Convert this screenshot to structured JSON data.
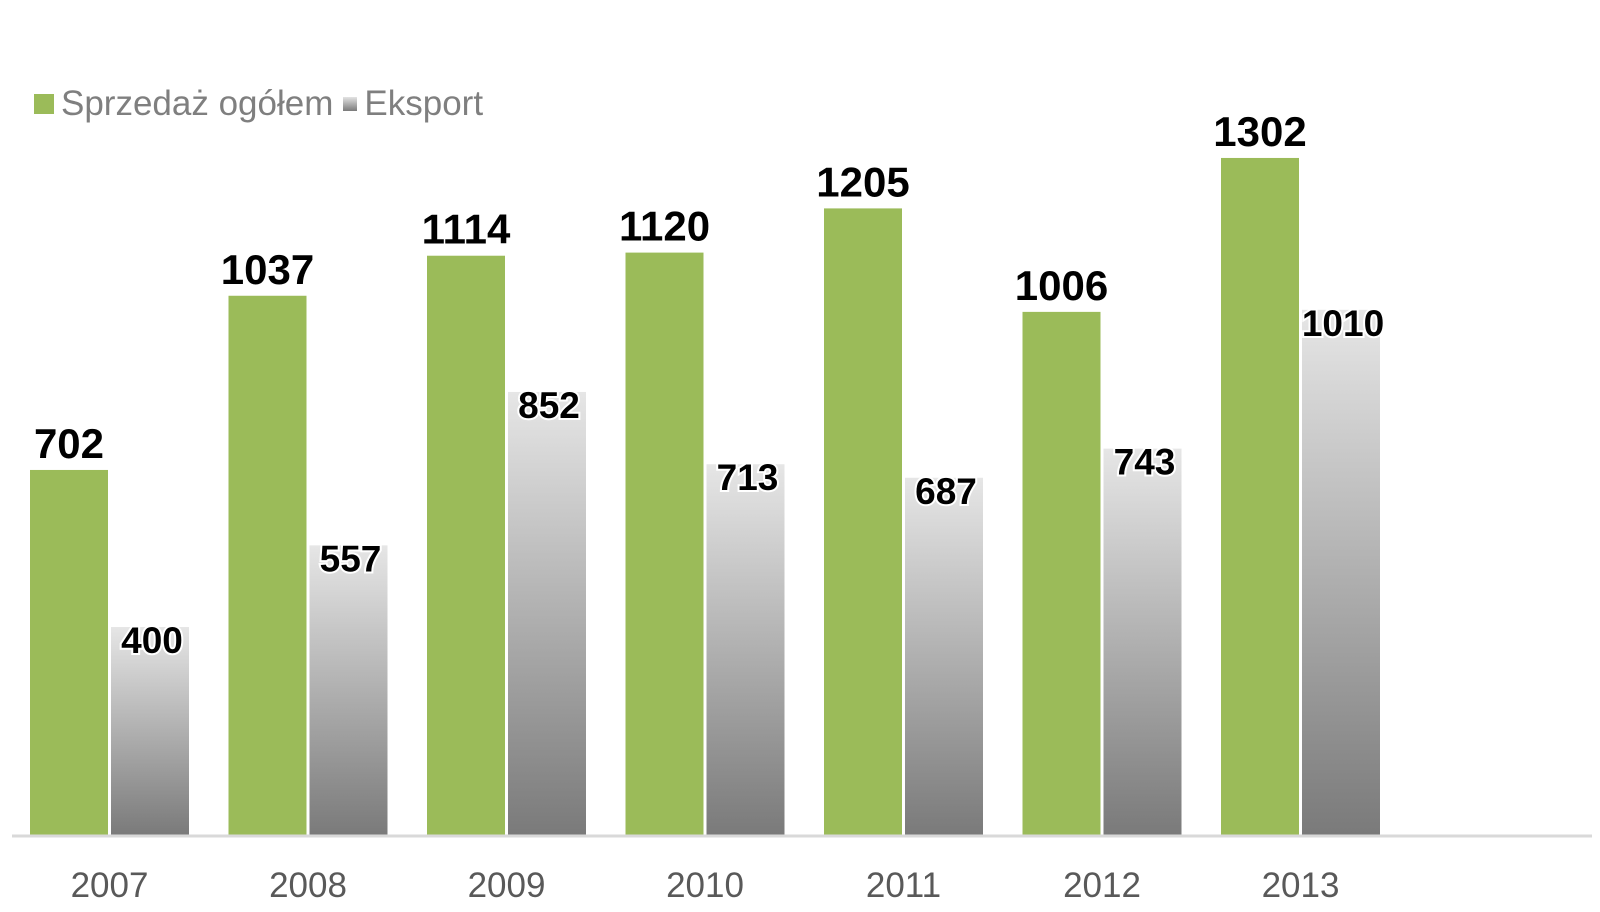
{
  "chart_data": {
    "type": "bar",
    "categories": [
      "2007",
      "2008",
      "2009",
      "2010",
      "2011",
      "2012",
      "2013"
    ],
    "series": [
      {
        "name": "Sprzedaż ogółem",
        "values": [
          702,
          1037,
          1114,
          1120,
          1205,
          1006,
          1302
        ],
        "color": "#9bbb59"
      },
      {
        "name": "Eksport",
        "values": [
          400,
          557,
          852,
          713,
          687,
          743,
          1010
        ],
        "color": "#a6a6a6"
      }
    ],
    "title": "",
    "xlabel": "",
    "ylabel": "",
    "ylim": [
      0,
      1400
    ],
    "legend": "top-left",
    "grid": false,
    "data_labels": true
  }
}
